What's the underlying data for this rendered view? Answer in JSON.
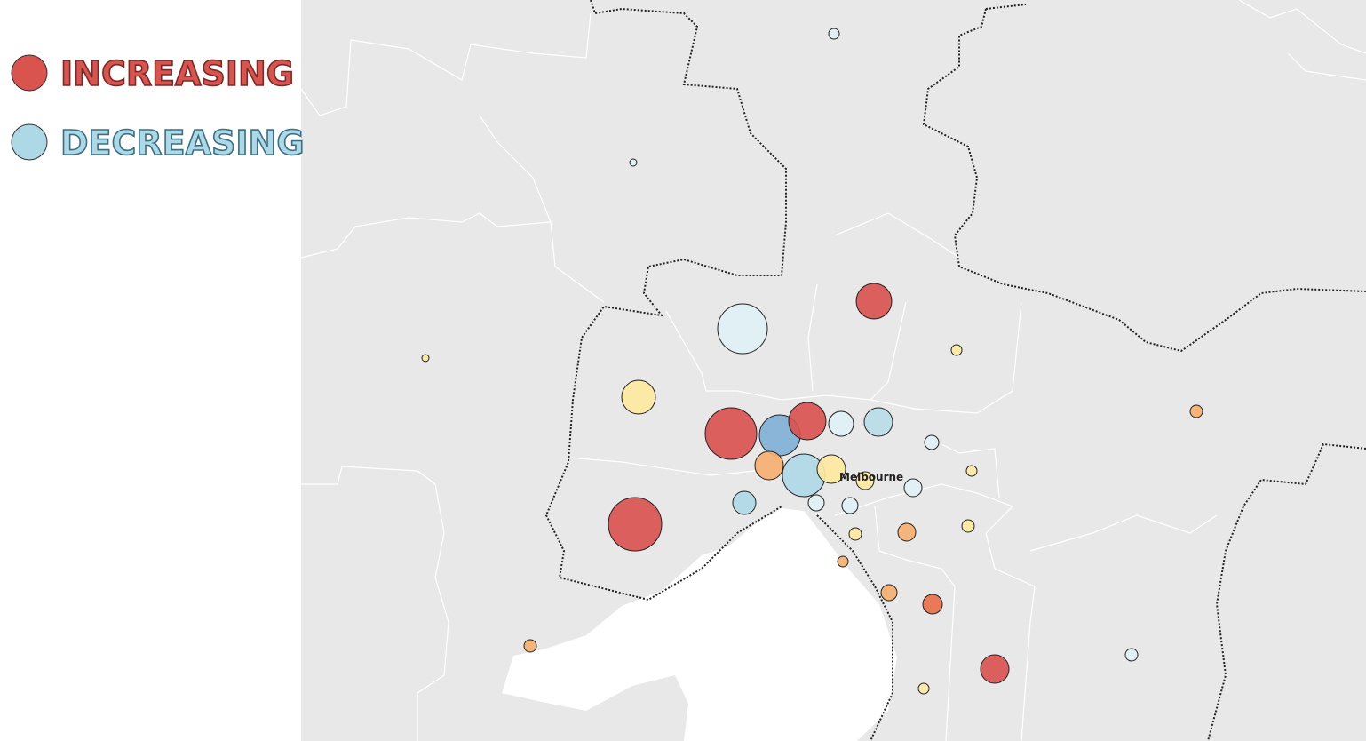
{
  "legend": {
    "items": [
      {
        "label": "INCREASING"
      },
      {
        "label": "DECREASING"
      }
    ]
  },
  "map": {
    "labels": [
      "Melbourne"
    ]
  }
}
